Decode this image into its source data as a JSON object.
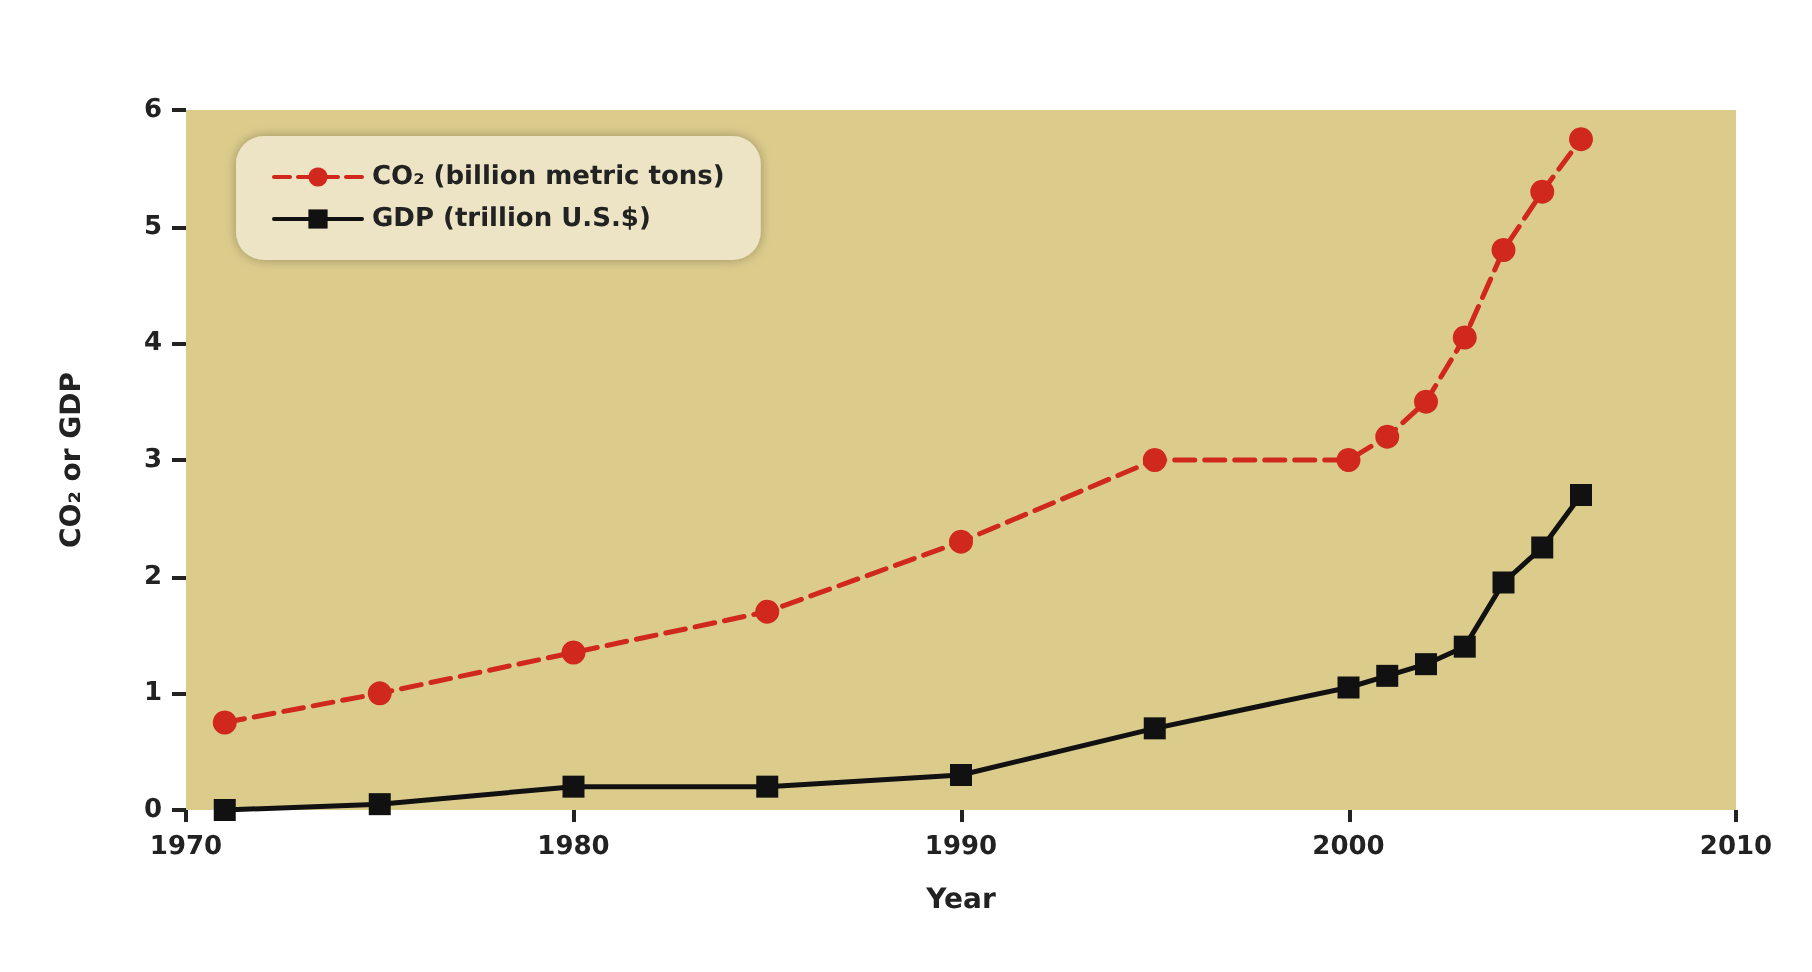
{
  "chart_data": {
    "type": "line",
    "xlabel": "Year",
    "ylabel": "CO₂ or GDP",
    "xlim": [
      1970,
      2010
    ],
    "xticks": [
      1970,
      1980,
      1990,
      2000,
      2010
    ],
    "ylim": [
      0,
      6
    ],
    "yticks": [
      0,
      1,
      2,
      3,
      4,
      5,
      6
    ],
    "grid": false,
    "legend": "top left",
    "series": [
      {
        "name": "CO₂ (billion metric tons)",
        "color": "#d0281c",
        "marker": "circle",
        "line_style": "dashed",
        "x": [
          1971,
          1975,
          1980,
          1985,
          1990,
          1995,
          2000,
          2001,
          2002,
          2003,
          2004,
          2005,
          2006
        ],
        "values": [
          0.75,
          1.0,
          1.35,
          1.7,
          2.3,
          3.0,
          3.0,
          3.2,
          3.5,
          4.05,
          4.8,
          5.3,
          5.75
        ]
      },
      {
        "name": "GDP (trillion U.S.$)",
        "color": "#111111",
        "marker": "square",
        "line_style": "solid",
        "x": [
          1971,
          1975,
          1980,
          1985,
          1990,
          1995,
          2000,
          2001,
          2002,
          2003,
          2004,
          2005,
          2006
        ],
        "values": [
          0.0,
          0.05,
          0.2,
          0.2,
          0.3,
          0.7,
          1.05,
          1.15,
          1.25,
          1.4,
          1.95,
          2.25,
          2.7
        ]
      }
    ]
  }
}
